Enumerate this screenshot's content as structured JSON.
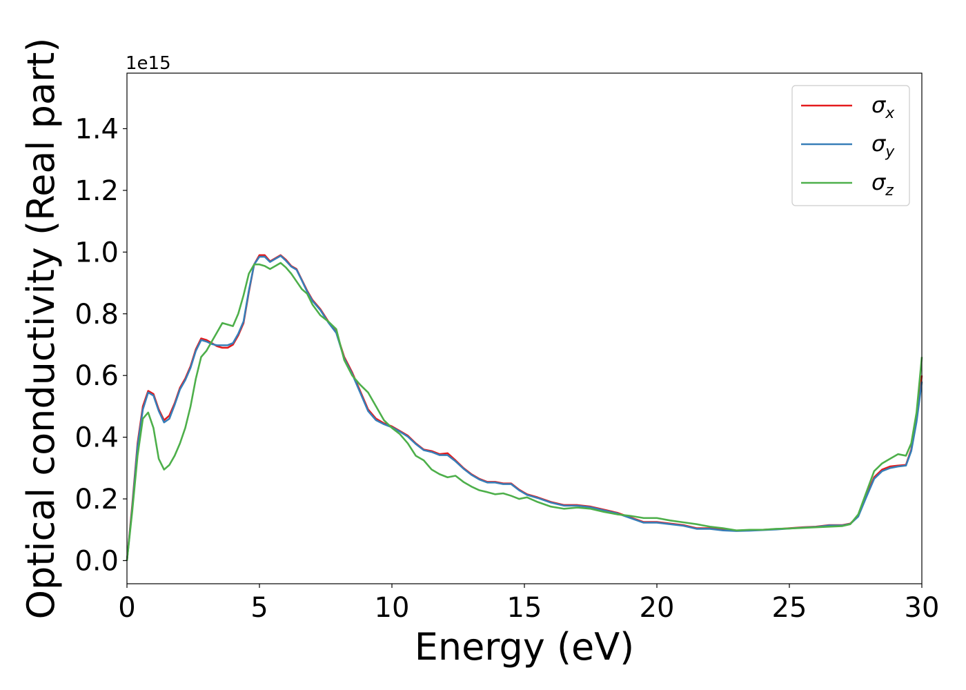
{
  "chart_data": {
    "type": "line",
    "xlabel": "Energy (eV)",
    "ylabel": "Optical conductivity (Real part)",
    "offset_text": "1e15",
    "xlim": [
      0,
      30
    ],
    "ylim": [
      -0.075,
      1.58
    ],
    "x_ticks": [
      0,
      5,
      10,
      15,
      20,
      25,
      30
    ],
    "y_ticks": [
      0.0,
      0.2,
      0.4,
      0.6,
      0.8,
      1.0,
      1.2,
      1.4
    ],
    "x_tick_labels": [
      "0",
      "5",
      "10",
      "15",
      "20",
      "25",
      "30"
    ],
    "y_tick_labels": [
      "0.0",
      "0.2",
      "0.4",
      "0.6",
      "0.8",
      "1.0",
      "1.2",
      "1.4"
    ],
    "grid": false,
    "legend_position": "top-right",
    "series": [
      {
        "name": "σx",
        "legend_symbol": "σ",
        "legend_sub": "x",
        "color": "#e41a1c",
        "x": [
          0,
          0.2,
          0.4,
          0.6,
          0.8,
          1.0,
          1.2,
          1.4,
          1.6,
          1.8,
          2.0,
          2.2,
          2.4,
          2.6,
          2.8,
          3.0,
          3.2,
          3.4,
          3.6,
          3.8,
          4.0,
          4.2,
          4.4,
          4.6,
          4.8,
          5.0,
          5.2,
          5.4,
          5.6,
          5.8,
          6.0,
          6.2,
          6.4,
          6.6,
          6.8,
          7.0,
          7.3,
          7.6,
          7.9,
          8.2,
          8.5,
          8.8,
          9.1,
          9.4,
          9.7,
          10.0,
          10.3,
          10.6,
          10.9,
          11.2,
          11.5,
          11.8,
          12.1,
          12.4,
          12.7,
          13.0,
          13.3,
          13.6,
          13.9,
          14.2,
          14.5,
          14.8,
          15.1,
          15.5,
          16.0,
          16.5,
          17.0,
          17.5,
          18.0,
          18.5,
          19.0,
          19.5,
          20.0,
          20.5,
          21.0,
          21.5,
          22.0,
          22.5,
          23.0,
          23.5,
          24.0,
          24.5,
          25.0,
          25.5,
          26.0,
          26.5,
          27.0,
          27.3,
          27.6,
          27.9,
          28.2,
          28.5,
          28.8,
          29.1,
          29.4,
          29.6,
          29.8,
          30.0
        ],
        "y": [
          0.0,
          0.18,
          0.38,
          0.5,
          0.55,
          0.54,
          0.49,
          0.455,
          0.47,
          0.51,
          0.56,
          0.59,
          0.63,
          0.685,
          0.72,
          0.715,
          0.705,
          0.695,
          0.69,
          0.69,
          0.7,
          0.73,
          0.77,
          0.87,
          0.96,
          0.99,
          0.99,
          0.97,
          0.98,
          0.99,
          0.975,
          0.955,
          0.945,
          0.91,
          0.875,
          0.845,
          0.815,
          0.775,
          0.74,
          0.66,
          0.61,
          0.55,
          0.49,
          0.46,
          0.445,
          0.435,
          0.42,
          0.405,
          0.38,
          0.36,
          0.355,
          0.345,
          0.348,
          0.325,
          0.3,
          0.28,
          0.265,
          0.255,
          0.255,
          0.25,
          0.25,
          0.23,
          0.215,
          0.205,
          0.19,
          0.18,
          0.18,
          0.175,
          0.165,
          0.155,
          0.14,
          0.125,
          0.125,
          0.12,
          0.115,
          0.105,
          0.105,
          0.1,
          0.097,
          0.098,
          0.1,
          0.102,
          0.105,
          0.108,
          0.11,
          0.115,
          0.115,
          0.12,
          0.145,
          0.21,
          0.27,
          0.295,
          0.305,
          0.308,
          0.31,
          0.36,
          0.46,
          0.6
        ]
      },
      {
        "name": "σy",
        "legend_symbol": "σ",
        "legend_sub": "y",
        "color": "#377eb8",
        "x": [
          0,
          0.2,
          0.4,
          0.6,
          0.8,
          1.0,
          1.2,
          1.4,
          1.6,
          1.8,
          2.0,
          2.2,
          2.4,
          2.6,
          2.8,
          3.0,
          3.2,
          3.4,
          3.6,
          3.8,
          4.0,
          4.2,
          4.4,
          4.6,
          4.8,
          5.0,
          5.2,
          5.4,
          5.6,
          5.8,
          6.0,
          6.2,
          6.4,
          6.6,
          6.8,
          7.0,
          7.3,
          7.6,
          7.9,
          8.2,
          8.5,
          8.8,
          9.1,
          9.4,
          9.7,
          10.0,
          10.3,
          10.6,
          10.9,
          11.2,
          11.5,
          11.8,
          12.1,
          12.4,
          12.7,
          13.0,
          13.3,
          13.6,
          13.9,
          14.2,
          14.5,
          14.8,
          15.1,
          15.5,
          16.0,
          16.5,
          17.0,
          17.5,
          18.0,
          18.5,
          19.0,
          19.5,
          20.0,
          20.5,
          21.0,
          21.5,
          22.0,
          22.5,
          23.0,
          23.5,
          24.0,
          24.5,
          25.0,
          25.5,
          26.0,
          26.5,
          27.0,
          27.3,
          27.6,
          27.9,
          28.2,
          28.5,
          28.8,
          29.1,
          29.4,
          29.6,
          29.8,
          30.0
        ],
        "y": [
          0.0,
          0.17,
          0.37,
          0.49,
          0.545,
          0.535,
          0.485,
          0.448,
          0.46,
          0.505,
          0.555,
          0.585,
          0.625,
          0.68,
          0.715,
          0.71,
          0.702,
          0.698,
          0.698,
          0.698,
          0.705,
          0.735,
          0.775,
          0.875,
          0.96,
          0.985,
          0.985,
          0.968,
          0.978,
          0.988,
          0.972,
          0.953,
          0.943,
          0.908,
          0.872,
          0.842,
          0.812,
          0.772,
          0.738,
          0.655,
          0.605,
          0.545,
          0.485,
          0.455,
          0.442,
          0.432,
          0.418,
          0.402,
          0.378,
          0.358,
          0.352,
          0.342,
          0.342,
          0.322,
          0.298,
          0.278,
          0.263,
          0.253,
          0.253,
          0.248,
          0.248,
          0.228,
          0.213,
          0.203,
          0.188,
          0.178,
          0.178,
          0.173,
          0.163,
          0.153,
          0.138,
          0.123,
          0.123,
          0.118,
          0.113,
          0.103,
          0.103,
          0.098,
          0.096,
          0.097,
          0.099,
          0.101,
          0.104,
          0.107,
          0.109,
          0.114,
          0.114,
          0.119,
          0.143,
          0.205,
          0.265,
          0.29,
          0.3,
          0.305,
          0.308,
          0.355,
          0.45,
          0.58
        ]
      },
      {
        "name": "σz",
        "legend_symbol": "σ",
        "legend_sub": "z",
        "color": "#4daf4a",
        "x": [
          0,
          0.2,
          0.4,
          0.6,
          0.8,
          1.0,
          1.2,
          1.4,
          1.6,
          1.8,
          2.0,
          2.2,
          2.4,
          2.6,
          2.8,
          3.0,
          3.2,
          3.4,
          3.6,
          3.8,
          4.0,
          4.2,
          4.4,
          4.6,
          4.8,
          5.0,
          5.2,
          5.4,
          5.6,
          5.8,
          6.0,
          6.2,
          6.4,
          6.6,
          6.8,
          7.0,
          7.3,
          7.6,
          7.9,
          8.2,
          8.5,
          8.8,
          9.1,
          9.4,
          9.7,
          10.0,
          10.3,
          10.6,
          10.9,
          11.2,
          11.5,
          11.8,
          12.1,
          12.4,
          12.7,
          13.0,
          13.3,
          13.6,
          13.9,
          14.2,
          14.5,
          14.8,
          15.1,
          15.5,
          16.0,
          16.5,
          17.0,
          17.5,
          18.0,
          18.5,
          19.0,
          19.5,
          20.0,
          20.5,
          21.0,
          21.5,
          22.0,
          22.5,
          23.0,
          23.5,
          24.0,
          24.5,
          25.0,
          25.5,
          26.0,
          26.5,
          27.0,
          27.3,
          27.6,
          27.9,
          28.2,
          28.5,
          28.8,
          29.1,
          29.4,
          29.6,
          29.8,
          30.0
        ],
        "y": [
          0.0,
          0.16,
          0.34,
          0.46,
          0.48,
          0.43,
          0.33,
          0.295,
          0.31,
          0.34,
          0.38,
          0.43,
          0.5,
          0.59,
          0.66,
          0.68,
          0.71,
          0.74,
          0.77,
          0.765,
          0.76,
          0.8,
          0.86,
          0.93,
          0.96,
          0.96,
          0.955,
          0.945,
          0.955,
          0.965,
          0.95,
          0.93,
          0.905,
          0.88,
          0.865,
          0.83,
          0.795,
          0.775,
          0.75,
          0.65,
          0.6,
          0.57,
          0.545,
          0.5,
          0.455,
          0.43,
          0.41,
          0.38,
          0.34,
          0.325,
          0.295,
          0.28,
          0.27,
          0.275,
          0.255,
          0.24,
          0.228,
          0.222,
          0.215,
          0.218,
          0.21,
          0.2,
          0.205,
          0.19,
          0.175,
          0.168,
          0.172,
          0.168,
          0.158,
          0.15,
          0.145,
          0.138,
          0.138,
          0.13,
          0.124,
          0.118,
          0.11,
          0.105,
          0.098,
          0.1,
          0.1,
          0.103,
          0.104,
          0.106,
          0.108,
          0.11,
          0.112,
          0.118,
          0.15,
          0.22,
          0.29,
          0.315,
          0.33,
          0.345,
          0.34,
          0.38,
          0.48,
          0.66
        ]
      }
    ]
  }
}
